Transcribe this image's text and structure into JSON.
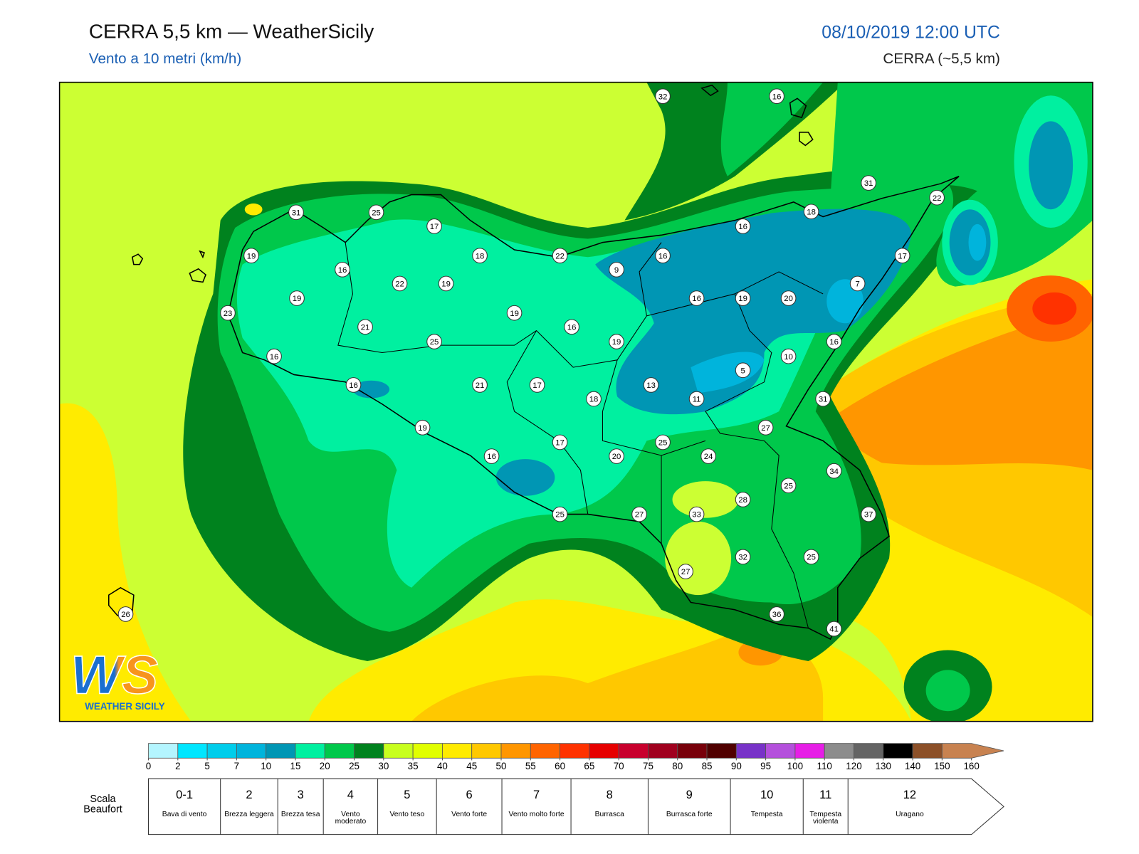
{
  "header": {
    "title": "CERRA 5,5 km — WeatherSicily",
    "subtitle": "Vento a 10 metri (km/h)",
    "date": "08/10/2019 12:00 UTC",
    "model": "CERRA (~5,5 km)"
  },
  "stations": [
    32,
    16,
    31,
    22,
    31,
    25,
    18,
    17,
    16,
    19,
    18,
    22,
    16,
    17,
    16,
    9,
    22,
    19,
    7,
    19,
    16,
    19,
    20,
    23,
    19,
    21,
    16,
    25,
    19,
    16,
    16,
    10,
    5,
    16,
    21,
    17,
    13,
    18,
    11,
    31,
    27,
    19,
    17,
    25,
    16,
    20,
    24,
    34,
    25,
    28,
    25,
    27,
    33,
    37,
    32,
    25,
    27,
    36,
    41,
    26
  ],
  "colorbar": {
    "ticks": [
      0,
      2,
      5,
      7,
      10,
      15,
      20,
      25,
      30,
      35,
      40,
      45,
      50,
      55,
      60,
      65,
      70,
      75,
      80,
      85,
      90,
      95,
      100,
      110,
      120,
      130,
      140,
      150,
      160
    ],
    "colors": [
      "#b4f5ff",
      "#00e6ff",
      "#00cdeb",
      "#00b4dc",
      "#0096b4",
      "#00f0a0",
      "#00c84b",
      "#00821e",
      "#c8ff1e",
      "#e1ff00",
      "#ffeb00",
      "#ffc800",
      "#ff9600",
      "#ff6400",
      "#ff3200",
      "#e60000",
      "#c8002d",
      "#a0001e",
      "#78000a",
      "#500000",
      "#7832c8",
      "#b450dc",
      "#e61ee6",
      "#8c8c8c",
      "#646464",
      "#000000",
      "#8c5028",
      "#c88250"
    ]
  },
  "beaufort": {
    "label": "Scala Beaufort",
    "scale": [
      {
        "force": "0-1",
        "description": "Bava di vento"
      },
      {
        "force": 2,
        "description": "Brezza leggera"
      },
      {
        "force": 3,
        "description": "Brezza tesa"
      },
      {
        "force": 4,
        "description": "Vento moderato"
      },
      {
        "force": 5,
        "description": "Vento teso"
      },
      {
        "force": 6,
        "description": "Vento forte"
      },
      {
        "force": 7,
        "description": "Vento molto forte"
      },
      {
        "force": 8,
        "description": "Burrasca"
      },
      {
        "force": 9,
        "description": "Burrasca forte"
      },
      {
        "force": 10,
        "description": "Tempesta"
      },
      {
        "force": 11,
        "description": "Tempesta violenta"
      },
      {
        "force": 12,
        "description": "Uragano"
      }
    ]
  },
  "logo": {
    "mark": "WS",
    "name": "WEATHER SICILY"
  }
}
